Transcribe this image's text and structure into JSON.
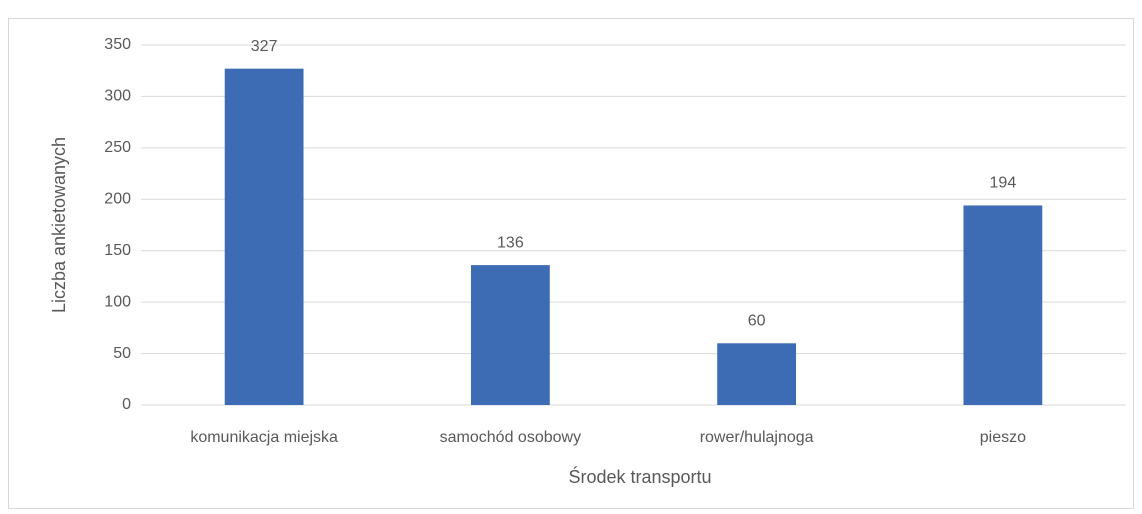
{
  "chart_data": {
    "type": "bar",
    "categories": [
      "komunikacja miejska",
      "samochód osobowy",
      "rower/hulajnoga",
      "pieszo"
    ],
    "values": [
      327,
      136,
      60,
      194
    ],
    "color": "#3e6cb4",
    "xlabel": "Środek transportu",
    "ylabel": "Liczba ankietowanych",
    "ylim": [
      0,
      350
    ],
    "yticks": [
      0,
      50,
      100,
      150,
      200,
      250,
      300,
      350
    ],
    "grid": true
  }
}
